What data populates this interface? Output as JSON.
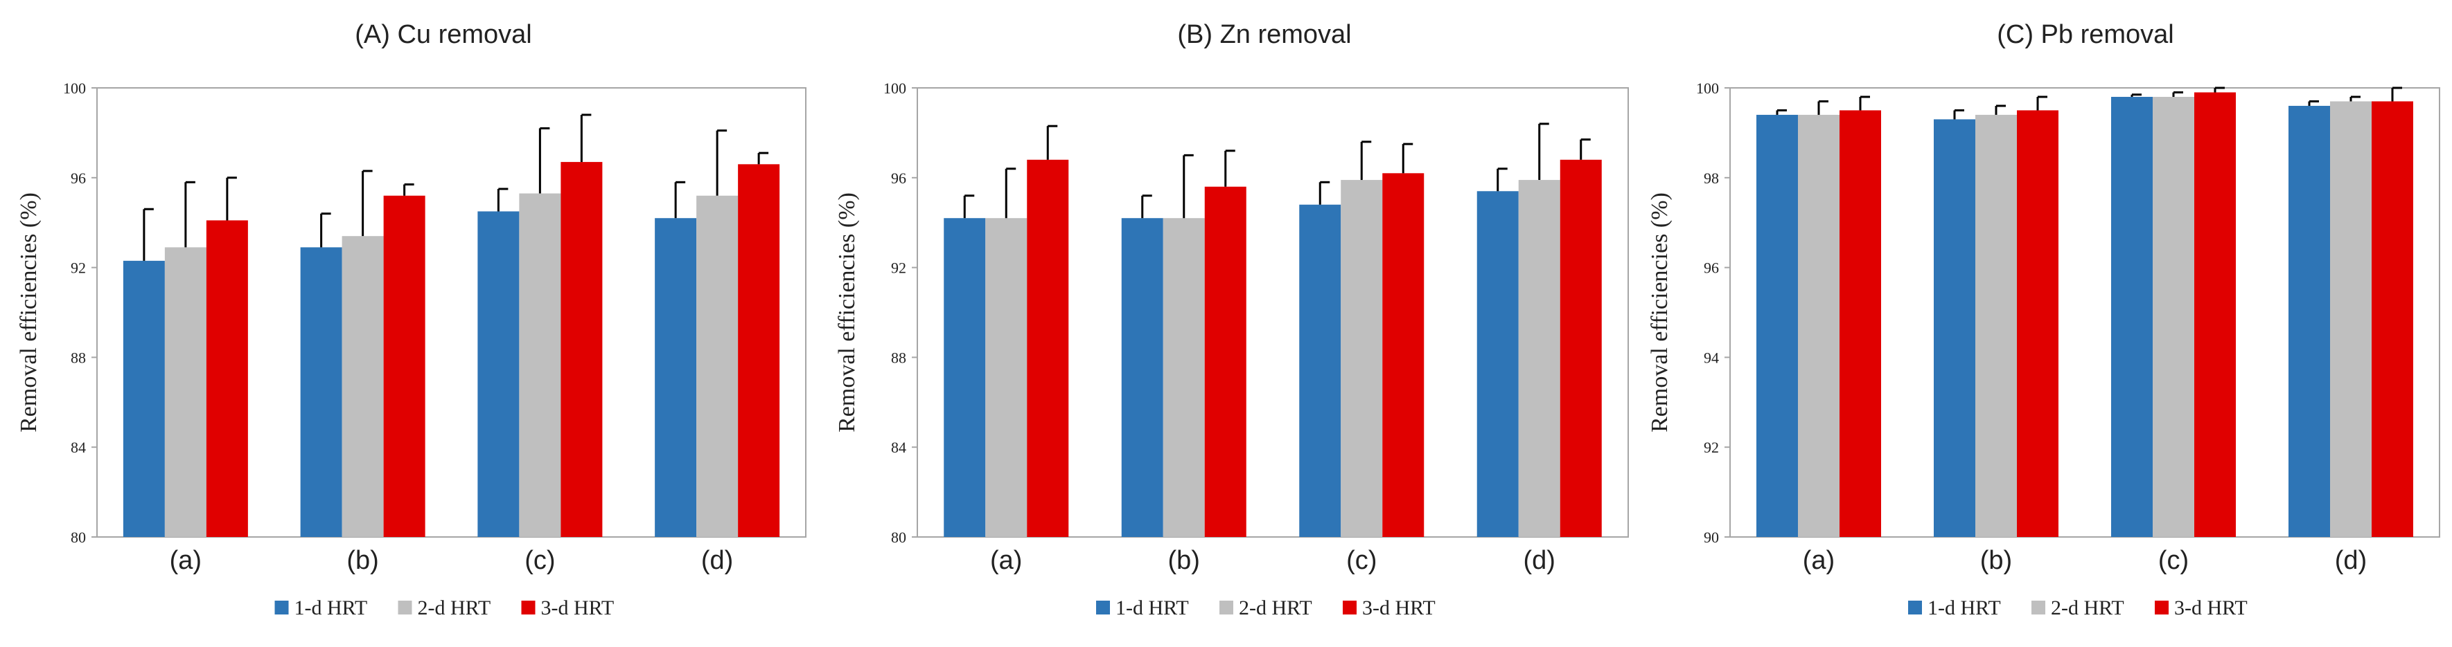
{
  "chart_data": [
    {
      "type": "bar",
      "title": "(A) Cu removal",
      "xlabel": "",
      "ylabel": "Removal efficiencies (%)",
      "ylim": [
        80,
        100
      ],
      "yticks": [
        80,
        84,
        88,
        92,
        96,
        100
      ],
      "categories": [
        "(a)",
        "(b)",
        "(c)",
        "(d)"
      ],
      "series": [
        {
          "name": "1-d HRT",
          "color": "#2e75b6",
          "values": [
            92.3,
            92.9,
            94.5,
            94.2
          ],
          "errors": [
            2.3,
            1.5,
            1.0,
            1.6
          ]
        },
        {
          "name": "2-d HRT",
          "color": "#bfbfbf",
          "values": [
            92.9,
            93.4,
            95.3,
            95.2
          ],
          "errors": [
            2.9,
            2.9,
            2.9,
            2.9
          ]
        },
        {
          "name": "3-d HRT",
          "color": "#e00000",
          "values": [
            94.1,
            95.2,
            96.7,
            96.6
          ],
          "errors": [
            1.9,
            0.5,
            2.1,
            0.5
          ]
        }
      ],
      "legend": "bottom"
    },
    {
      "type": "bar",
      "title": "(B) Zn removal",
      "xlabel": "",
      "ylabel": "Removal efficiencies (%)",
      "ylim": [
        80,
        100
      ],
      "yticks": [
        80,
        84,
        88,
        92,
        96,
        100
      ],
      "categories": [
        "(a)",
        "(b)",
        "(c)",
        "(d)"
      ],
      "series": [
        {
          "name": "1-d HRT",
          "color": "#2e75b6",
          "values": [
            94.2,
            94.2,
            94.8,
            95.4
          ],
          "errors": [
            1.0,
            1.0,
            1.0,
            1.0
          ]
        },
        {
          "name": "2-d HRT",
          "color": "#bfbfbf",
          "values": [
            94.2,
            94.2,
            95.9,
            95.9
          ],
          "errors": [
            2.2,
            2.8,
            1.7,
            2.5
          ]
        },
        {
          "name": "3-d HRT",
          "color": "#e00000",
          "values": [
            96.8,
            95.6,
            96.2,
            96.8
          ],
          "errors": [
            1.5,
            1.6,
            1.3,
            0.9
          ]
        }
      ],
      "legend": "bottom"
    },
    {
      "type": "bar",
      "title": "(C) Pb removal",
      "xlabel": "",
      "ylabel": "Removal efficiencies (%)",
      "ylim": [
        90,
        100
      ],
      "yticks": [
        90,
        92,
        94,
        96,
        98,
        100
      ],
      "categories": [
        "(a)",
        "(b)",
        "(c)",
        "(d)"
      ],
      "series": [
        {
          "name": "1-d HRT",
          "color": "#2e75b6",
          "values": [
            99.4,
            99.3,
            99.8,
            99.6
          ],
          "errors": [
            0.1,
            0.2,
            0.05,
            0.1
          ]
        },
        {
          "name": "2-d HRT",
          "color": "#bfbfbf",
          "values": [
            99.4,
            99.4,
            99.8,
            99.7
          ],
          "errors": [
            0.3,
            0.2,
            0.1,
            0.1
          ]
        },
        {
          "name": "3-d HRT",
          "color": "#e00000",
          "values": [
            99.5,
            99.5,
            99.9,
            99.7
          ],
          "errors": [
            0.3,
            0.3,
            0.1,
            0.3
          ]
        }
      ],
      "legend": "bottom"
    }
  ]
}
